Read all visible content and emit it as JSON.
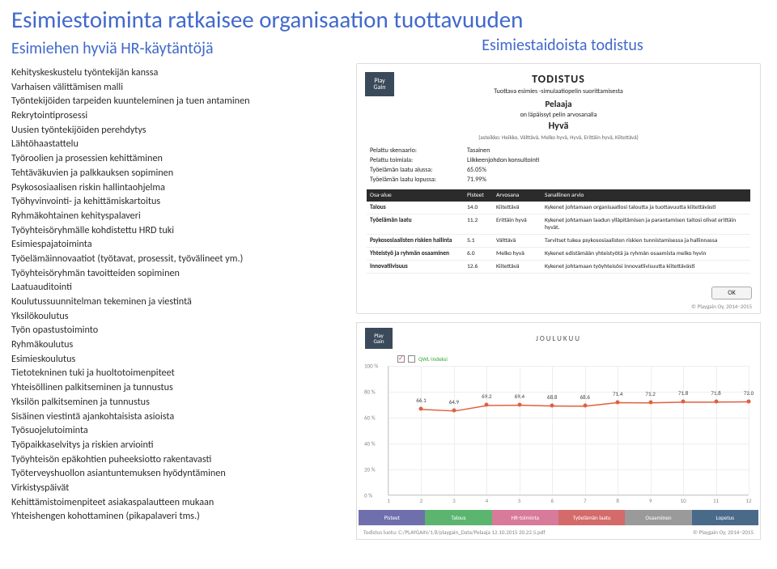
{
  "main_title": "Esimiestoiminta ratkaisee organisaation tuottavuuden",
  "sub_title": "Esimiehen hyviä HR-käytäntöjä",
  "right_title": "Esimiestaidoista todistus",
  "practices": [
    "Kehityskeskustelu työntekijän kanssa",
    "Varhaisen välittämisen malli",
    "Työntekijöiden tarpeiden kuunteleminen ja tuen antaminen",
    "Rekrytointiprosessi",
    "Uusien työntekijöiden perehdytys",
    "Lähtöhaastattelu",
    "Työroolien ja prosessien kehittäminen",
    "Tehtäväkuvien ja palkkauksen sopiminen",
    "Psykososiaalisen riskin hallintaohjelma",
    "Työhyvinvointi- ja kehittämiskartoitus",
    "Ryhmäkohtainen kehityspalaveri",
    "Työyhteisöryhmälle kohdistettu HRD tuki",
    "Esimiespajatoiminta",
    "Työelämäinnovaatiot (työtavat, prosessit, työvälineet ym.)",
    "Työyhteisöryhmän tavoitteiden sopiminen",
    "Laatuauditointi",
    "Koulutussuunnitelman tekeminen ja viestintä",
    "Yksilökoulutus",
    "Työn opastustoiminto",
    "Ryhmäkoulutus",
    "Esimieskoulutus",
    "Tietotekninen tuki ja huoltotoimenpiteet",
    "Yhteisöllinen palkitseminen ja tunnustus",
    "Yksilön palkitseminen ja tunnustus",
    "Sisäinen viestintä ajankohtaisista asioista",
    "Työsuojelutoiminta",
    "Työpaikkaselvitys ja riskien arviointi",
    "Työyhteisön epäkohtien puheeksiotto rakentavasti",
    "Työterveyshuollon asiantuntemuksen hyödyntäminen",
    "Virkistyspäivät",
    "Kehittämistoimenpiteet asiakaspalautteen mukaan",
    "Yhteishengen kohottaminen (pikapalaveri tms.)"
  ],
  "cert": {
    "logo_top": "Play",
    "logo_bot": "Gain",
    "title": "TODISTUS",
    "subtitle": "Tuottava esimies -simulaatiopelin suorittamisesta",
    "player": "Pelaaja",
    "pass": "on läpäissyt pelin arvosanalla",
    "grade": "Hyvä",
    "grade_note": "(asteikko: Heikko, Välttävä, Melko hyvä, Hyvä, Erittäin hyvä, Kiitettävä)",
    "meta": [
      {
        "label": "Pelattu skenaario:",
        "value": "Tasainen"
      },
      {
        "label": "Pelattu toimiala:",
        "value": "Liikkeenjohdon konsultointi"
      },
      {
        "label": "Työelämän laatu alussa:",
        "value": "65.05%"
      },
      {
        "label": "Työelämän laatu lopussa:",
        "value": "71.99%"
      }
    ],
    "table": {
      "headers": [
        "Osa-alue",
        "Pisteet",
        "Arvosana",
        "Sanallinen arvio"
      ],
      "rows": [
        [
          "Talous",
          "14.0",
          "Kiitettävä",
          "Kykenet johtamaan organisaatiosi taloutta ja tuottavuutta kiitettävästi"
        ],
        [
          "Työelämän laatu",
          "11.2",
          "Erittäin hyvä",
          "Kykenet johtamaan laadun ylläpitämisen ja parantamisen taitosi olivat erittäin hyvät."
        ],
        [
          "Psykososiaalisten riskien hallinta",
          "5.1",
          "Välttävä",
          "Tarvitset tukea psykososiaalisten riskien tunnistamisessa ja hallinnassa"
        ],
        [
          "Yhteistyö ja ryhmän osaaminen",
          "6.0",
          "Melko hyvä",
          "Kykenet edistämään yhteistyötä ja ryhmän osaamista melko hyvin"
        ],
        [
          "Innovatiivisuus",
          "12.6",
          "Kiitettävä",
          "Kykenet johtamaan työyhteisösi innovatiivisuutta kiitettävästi"
        ]
      ]
    },
    "ok": "OK",
    "copyright": "© Playgain Oy, 2014–2015"
  },
  "chart": {
    "logo_top": "Play",
    "logo_bot": "Gain",
    "title": "JOULUKUU",
    "legend_on": "QWL-indeksi",
    "y_ticks": [
      "100 %",
      "80 %",
      "60 %",
      "40 %",
      "20 %",
      "0 %"
    ],
    "x_ticks": [
      "1",
      "2",
      "3",
      "4",
      "5",
      "6",
      "7",
      "8",
      "9",
      "10",
      "11",
      "12"
    ],
    "values": [
      66.1,
      64.9,
      69.2,
      69.4,
      68.8,
      68.6,
      71.4,
      71.2,
      71.8,
      71.8,
      72.0
    ],
    "value_labels": [
      "66.1",
      "64.9",
      "69.2",
      "69.4",
      "68.8",
      "68.6",
      "71.4",
      "71.2",
      "71.8",
      "71.8",
      "72.0"
    ],
    "line_color": "#e06040",
    "ylim": [
      0,
      100
    ],
    "tabs": [
      {
        "label": "Pisteet",
        "color": "#6f6fae"
      },
      {
        "label": "Talous",
        "color": "#5bb56f"
      },
      {
        "label": "HR-toiminta",
        "color": "#d87a9a"
      },
      {
        "label": "Työelämän laatu",
        "color": "#d46a6a"
      },
      {
        "label": "Osaaminen",
        "color": "#9a9a9a"
      },
      {
        "label": "Lopetus",
        "color": "#4a6a8a"
      }
    ],
    "foot_left": "Todistus luotu: C:/PLAYGAIN/1.8/playgain_Data/Pelaaja 12.10.2015 20.22.5.pdf",
    "foot_right": "© Playgain Oy, 2014–2015"
  }
}
